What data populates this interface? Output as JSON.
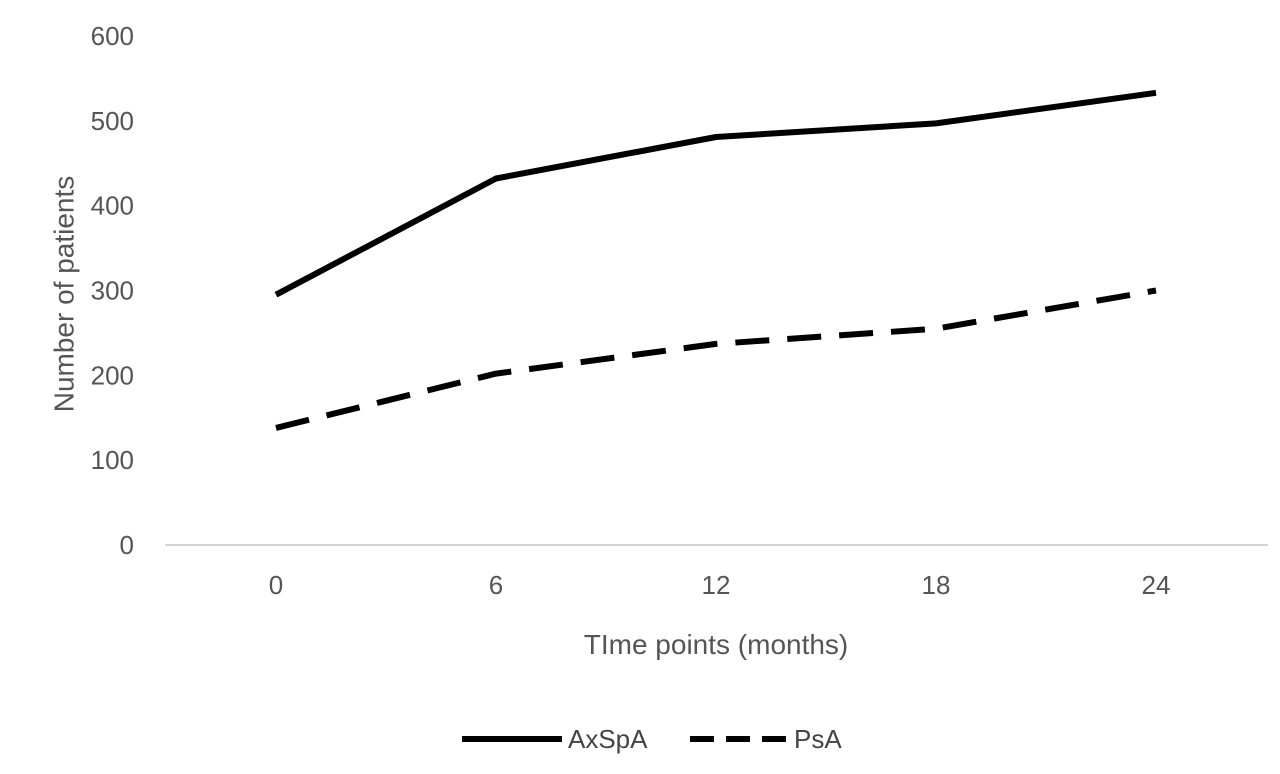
{
  "chart_data": {
    "type": "line",
    "title": "",
    "xlabel": "TIme points (months)",
    "ylabel": "Number  of  patients",
    "categories": [
      "0",
      "6",
      "12",
      "18",
      "24"
    ],
    "yticks": [
      "0",
      "100",
      "200",
      "300",
      "400",
      "500",
      "600"
    ],
    "ylim": [
      0,
      600
    ],
    "grid": false,
    "legend_position": "bottom",
    "series": [
      {
        "name": "AxSpA",
        "values": [
          295,
          432,
          481,
          497,
          533
        ],
        "style": "solid",
        "color": "#000000"
      },
      {
        "name": "PsA",
        "values": [
          138,
          202,
          237,
          255,
          300
        ],
        "style": "dashed",
        "color": "#000000"
      }
    ]
  }
}
